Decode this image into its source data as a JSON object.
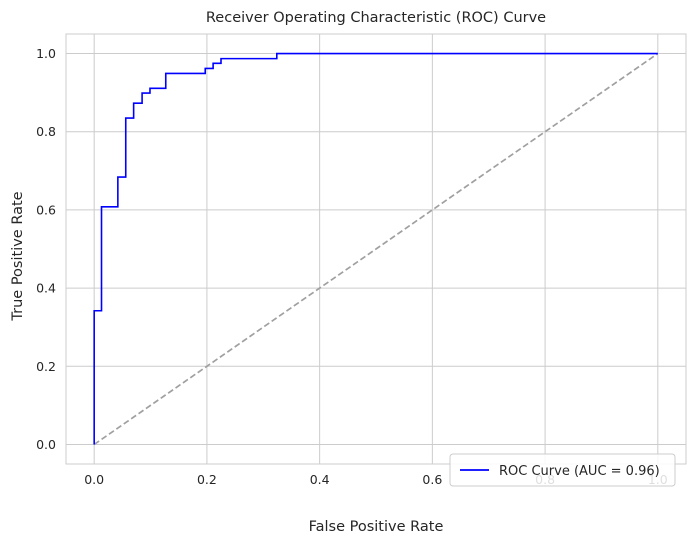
{
  "chart_data": {
    "type": "line",
    "title": "Receiver Operating Characteristic (ROC) Curve",
    "xlabel": "False Positive Rate",
    "ylabel": "True Positive Rate",
    "xlim": [
      -0.05,
      1.05
    ],
    "ylim": [
      -0.05,
      1.05
    ],
    "xticks": [
      0.0,
      0.2,
      0.4,
      0.6,
      0.8,
      1.0
    ],
    "yticks": [
      0.0,
      0.2,
      0.4,
      0.6,
      0.8,
      1.0
    ],
    "xtick_labels": [
      "0.0",
      "0.2",
      "0.4",
      "0.6",
      "0.8",
      "1.0"
    ],
    "ytick_labels": [
      "0.0",
      "0.2",
      "0.4",
      "0.6",
      "0.8",
      "1.0"
    ],
    "grid": true,
    "legend_position": "lower-right",
    "series": [
      {
        "name": "ROC Curve (AUC = 0.96)",
        "color": "#0000ff",
        "style": "solid",
        "x": [
          0.0,
          0.0,
          0.013,
          0.013,
          0.042,
          0.042,
          0.056,
          0.056,
          0.07,
          0.07,
          0.085,
          0.085,
          0.099,
          0.099,
          0.127,
          0.127,
          0.197,
          0.197,
          0.211,
          0.211,
          0.225,
          0.225,
          0.324,
          0.324,
          1.0
        ],
        "y": [
          0.0,
          0.342,
          0.342,
          0.608,
          0.608,
          0.684,
          0.684,
          0.835,
          0.835,
          0.873,
          0.873,
          0.899,
          0.899,
          0.911,
          0.911,
          0.949,
          0.949,
          0.962,
          0.962,
          0.975,
          0.975,
          0.987,
          0.987,
          1.0,
          1.0
        ]
      },
      {
        "color": "#a0a0a0",
        "style": "dashed",
        "x": [
          0.0,
          1.0
        ],
        "y": [
          0.0,
          1.0
        ]
      }
    ]
  }
}
